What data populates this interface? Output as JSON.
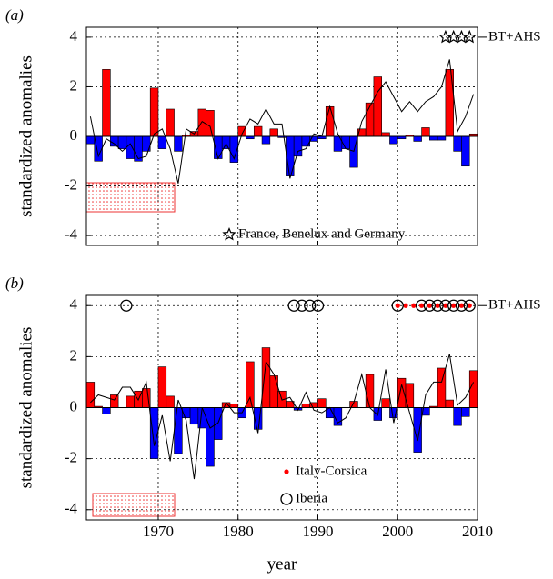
{
  "chart_data": [
    {
      "type": "bar",
      "panel_label": "(a)",
      "ylabel": "standardized anomalies",
      "xlim": [
        1961,
        2010
      ],
      "ylim": [
        -4.4,
        4.4
      ],
      "xticks": [
        1970,
        1980,
        1990,
        2000,
        2010
      ],
      "yticks": [
        4,
        2,
        0,
        -2,
        -4
      ],
      "show_xtick_labels": false,
      "grid": true,
      "positive_color": "#ff0000",
      "negative_color": "#0000ff",
      "x": [
        1961,
        1962,
        1963,
        1964,
        1965,
        1966,
        1967,
        1968,
        1969,
        1970,
        1971,
        1972,
        1973,
        1974,
        1975,
        1976,
        1977,
        1978,
        1979,
        1980,
        1981,
        1982,
        1983,
        1984,
        1985,
        1986,
        1987,
        1988,
        1989,
        1990,
        1991,
        1992,
        1993,
        1994,
        1995,
        1996,
        1997,
        1998,
        1999,
        2000,
        2001,
        2002,
        2003,
        2004,
        2005,
        2006,
        2007,
        2008,
        2009
      ],
      "values": [
        -0.3,
        -1.0,
        2.7,
        -0.4,
        -0.5,
        -0.9,
        -1.0,
        -0.6,
        1.95,
        -0.5,
        1.1,
        -0.6,
        0.05,
        0.2,
        1.1,
        1.05,
        -0.9,
        -0.5,
        -1.05,
        0.4,
        -0.1,
        0.4,
        -0.3,
        0.3,
        -0.05,
        -1.6,
        -0.8,
        -0.4,
        -0.2,
        -0.1,
        1.2,
        -0.6,
        -0.5,
        -1.25,
        0.3,
        1.35,
        2.4,
        0.15,
        -0.3,
        -0.1,
        0.05,
        -0.2,
        0.35,
        -0.15,
        -0.15,
        2.7,
        -0.6,
        -1.2,
        0.1
      ],
      "line": {
        "color": "#000000",
        "values": [
          0.8,
          -0.8,
          -0.1,
          -0.3,
          -0.6,
          -0.3,
          -0.9,
          -0.8,
          0.1,
          0.3,
          -0.5,
          -1.9,
          0.3,
          0.1,
          0.6,
          0.4,
          -0.9,
          -0.3,
          -0.9,
          0.1,
          0.7,
          0.5,
          1.1,
          0.5,
          0.5,
          -1.7,
          -0.6,
          -0.5,
          0.1,
          0.0,
          1.2,
          0.1,
          -0.5,
          -0.6,
          0.6,
          1.2,
          1.8,
          2.2,
          1.6,
          1.0,
          1.4,
          1.0,
          1.4,
          1.6,
          2.0,
          3.1,
          0.2,
          0.8,
          1.7
        ]
      },
      "annotation": "BT+AHS",
      "markers": [
        {
          "name": "France, Benelux and Germany",
          "symbol": "star",
          "color": "#000000",
          "x": [
            2006,
            2007,
            2008,
            2009
          ],
          "y": [
            4,
            4,
            4,
            4
          ]
        }
      ]
    },
    {
      "type": "bar",
      "panel_label": "(b)",
      "ylabel": "standardized anomalies",
      "xlabel": "year",
      "xlim": [
        1961,
        2010
      ],
      "ylim": [
        -4.4,
        4.4
      ],
      "xticks": [
        1970,
        1980,
        1990,
        2000,
        2010
      ],
      "yticks": [
        4,
        2,
        0,
        -2,
        -4
      ],
      "show_xtick_labels": true,
      "grid": true,
      "positive_color": "#ff0000",
      "negative_color": "#0000ff",
      "x": [
        1961,
        1962,
        1963,
        1964,
        1965,
        1966,
        1967,
        1968,
        1969,
        1970,
        1971,
        1972,
        1973,
        1974,
        1975,
        1976,
        1977,
        1978,
        1979,
        1980,
        1981,
        1982,
        1983,
        1984,
        1985,
        1986,
        1987,
        1988,
        1989,
        1990,
        1991,
        1992,
        1993,
        1994,
        1995,
        1996,
        1997,
        1998,
        1999,
        2000,
        2001,
        2002,
        2003,
        2004,
        2005,
        2006,
        2007,
        2008,
        2009
      ],
      "values": [
        1.0,
        0.05,
        -0.25,
        0.5,
        0.0,
        0.45,
        0.65,
        0.75,
        -2.0,
        1.6,
        0.45,
        -1.8,
        -0.4,
        -0.65,
        -0.8,
        -2.3,
        -1.25,
        0.2,
        0.15,
        -0.4,
        1.8,
        -0.85,
        2.35,
        1.25,
        0.65,
        0.25,
        -0.1,
        0.15,
        0.2,
        0.35,
        -0.4,
        -0.7,
        0.0,
        0.25,
        0.0,
        1.3,
        -0.5,
        0.35,
        -0.4,
        1.15,
        0.95,
        -1.75,
        -0.3,
        0.05,
        1.55,
        0.3,
        -0.7,
        -0.35,
        1.45
      ],
      "line": {
        "color": "#000000",
        "values": [
          0.2,
          0.5,
          0.4,
          0.3,
          0.8,
          0.8,
          0.3,
          1.0,
          -1.5,
          -0.3,
          -2.1,
          0.3,
          -0.5,
          -2.8,
          0.0,
          -0.8,
          -0.6,
          0.2,
          -0.2,
          -0.2,
          0.4,
          -1.0,
          1.8,
          1.3,
          0.3,
          0.4,
          -0.1,
          0.6,
          -0.1,
          -0.2,
          0.0,
          -0.6,
          -0.4,
          0.2,
          1.3,
          0.0,
          -0.3,
          1.5,
          -0.6,
          0.9,
          -0.2,
          -1.3,
          0.5,
          1.0,
          1.0,
          2.1,
          0.1,
          0.4,
          1.0
        ]
      },
      "annotation": "BT+AHS",
      "markers": [
        {
          "name": "Italy-Corsica",
          "symbol": "dot",
          "color": "#ff0000",
          "x": [
            2000,
            2001,
            2002,
            2003,
            2004,
            2005,
            2006,
            2007,
            2008,
            2009
          ],
          "y": [
            4,
            4,
            4,
            4,
            4,
            4,
            4,
            4,
            4,
            4
          ]
        },
        {
          "name": "Iberia",
          "symbol": "circle",
          "color": "#000000",
          "x": [
            1966,
            1987,
            1988,
            1989,
            1990,
            2000,
            2003,
            2004,
            2005,
            2006,
            2007,
            2008,
            2009
          ],
          "y": [
            4,
            4,
            4,
            4,
            4,
            4,
            4,
            4,
            4,
            4,
            4,
            4,
            4
          ]
        }
      ]
    }
  ]
}
